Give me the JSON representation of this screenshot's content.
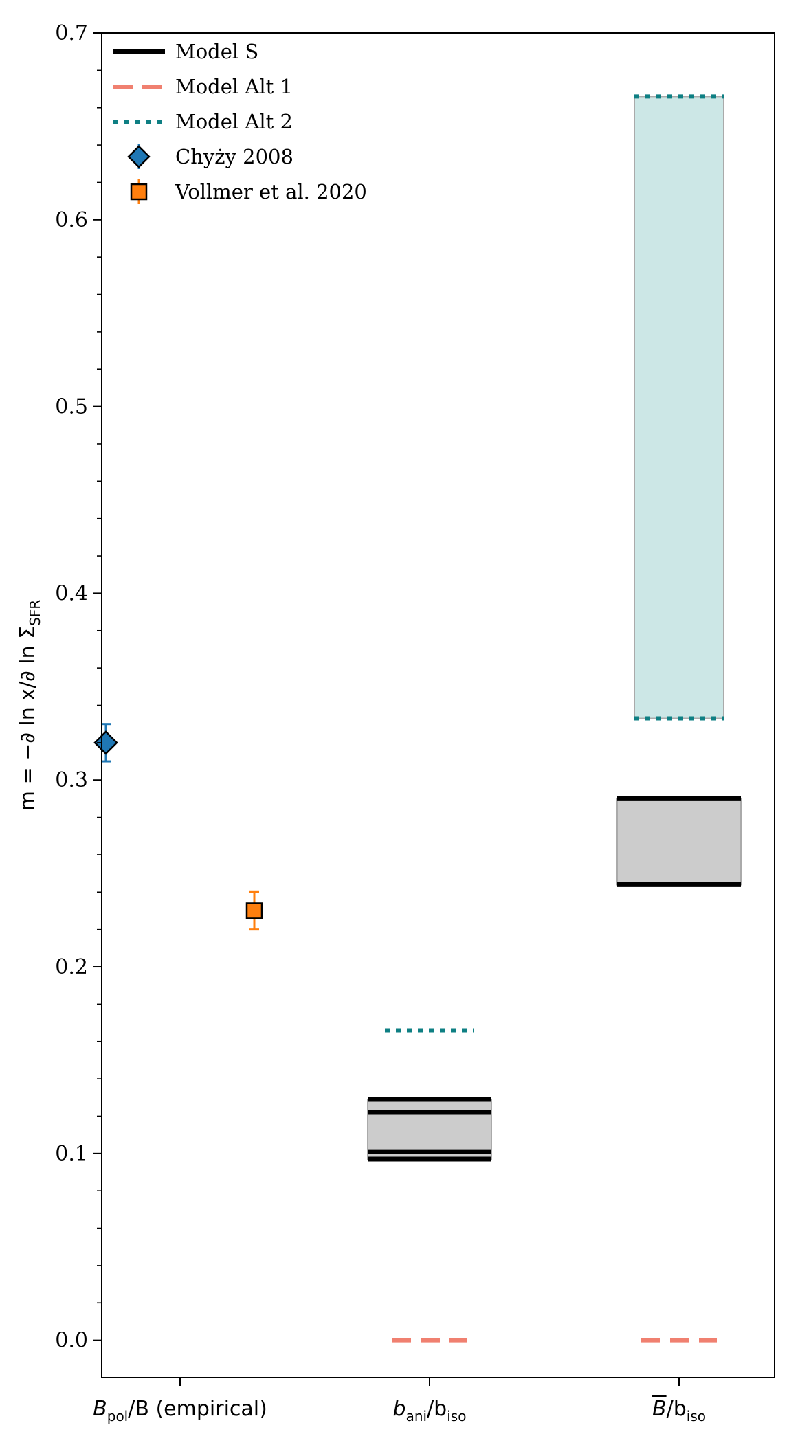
{
  "chart_data": {
    "type": "scatter",
    "ylabel": "m = −∂ ln x/∂ ln Σ",
    "ylabel_subscript": "SFR",
    "ylim": [
      -0.02,
      0.7
    ],
    "yticks": [
      0.0,
      0.1,
      0.2,
      0.3,
      0.4,
      0.5,
      0.6,
      0.7
    ],
    "ytick_labels": [
      "0.0",
      "0.1",
      "0.2",
      "0.3",
      "0.4",
      "0.5",
      "0.6",
      "0.7"
    ],
    "categories": [
      {
        "main": "B",
        "sub": "pol",
        "rest": "/B (empirical)"
      },
      {
        "main": "b",
        "sub": "ani",
        "rest": "/b",
        "sub2": "iso"
      },
      {
        "main": "B",
        "overline": true,
        "rest": "/b",
        "sub2": "iso"
      }
    ],
    "legend": {
      "placement": "upper-left",
      "entries": [
        {
          "label": "Model S",
          "style": "solid",
          "color": "#000000"
        },
        {
          "label": "Model Alt 1",
          "style": "dashed",
          "color": "#f08070"
        },
        {
          "label": "Model Alt 2",
          "style": "dotted",
          "color": "#0e7f83"
        },
        {
          "label": "Chyży 2008",
          "style": "diamond",
          "color": "#1f77b4"
        },
        {
          "label": "Vollmer et al. 2020",
          "style": "square",
          "color": "#ff7f0e"
        }
      ]
    },
    "observations": [
      {
        "name": "Chyży 2008",
        "category": 0,
        "offset": -0.3,
        "y": 0.32,
        "yerr": 0.01,
        "marker": "diamond",
        "color": "#1f77b4"
      },
      {
        "name": "Vollmer et al. 2020",
        "category": 0,
        "offset": 0.3,
        "y": 0.23,
        "yerr": 0.01,
        "marker": "square",
        "color": "#ff7f0e"
      }
    ],
    "model_lines": [
      {
        "model": "Model S",
        "category": 1,
        "y": 0.129
      },
      {
        "model": "Model S",
        "category": 1,
        "y": 0.122
      },
      {
        "model": "Model S",
        "category": 1,
        "y": 0.101
      },
      {
        "model": "Model S",
        "category": 1,
        "y": 0.097
      },
      {
        "model": "Model S",
        "category": 2,
        "y": 0.29
      },
      {
        "model": "Model S",
        "category": 2,
        "y": 0.244
      },
      {
        "model": "Model Alt 1",
        "category": 1,
        "y": 0.0
      },
      {
        "model": "Model Alt 1",
        "category": 2,
        "y": 0.0
      },
      {
        "model": "Model Alt 2",
        "category": 1,
        "y": 0.166
      },
      {
        "model": "Model Alt 2",
        "category": 2,
        "y": 0.666
      },
      {
        "model": "Model Alt 2",
        "category": 2,
        "y": 0.333
      }
    ],
    "shaded_ranges": [
      {
        "model": "Model S",
        "category": 1,
        "y0": 0.097,
        "y1": 0.129,
        "color": "#cccccc"
      },
      {
        "model": "Model S",
        "category": 2,
        "y0": 0.244,
        "y1": 0.29,
        "color": "#cccccc"
      },
      {
        "model": "Model Alt 2",
        "category": 2,
        "y0": 0.333,
        "y1": 0.666,
        "color": "#cce7e6"
      }
    ],
    "grid": false
  }
}
